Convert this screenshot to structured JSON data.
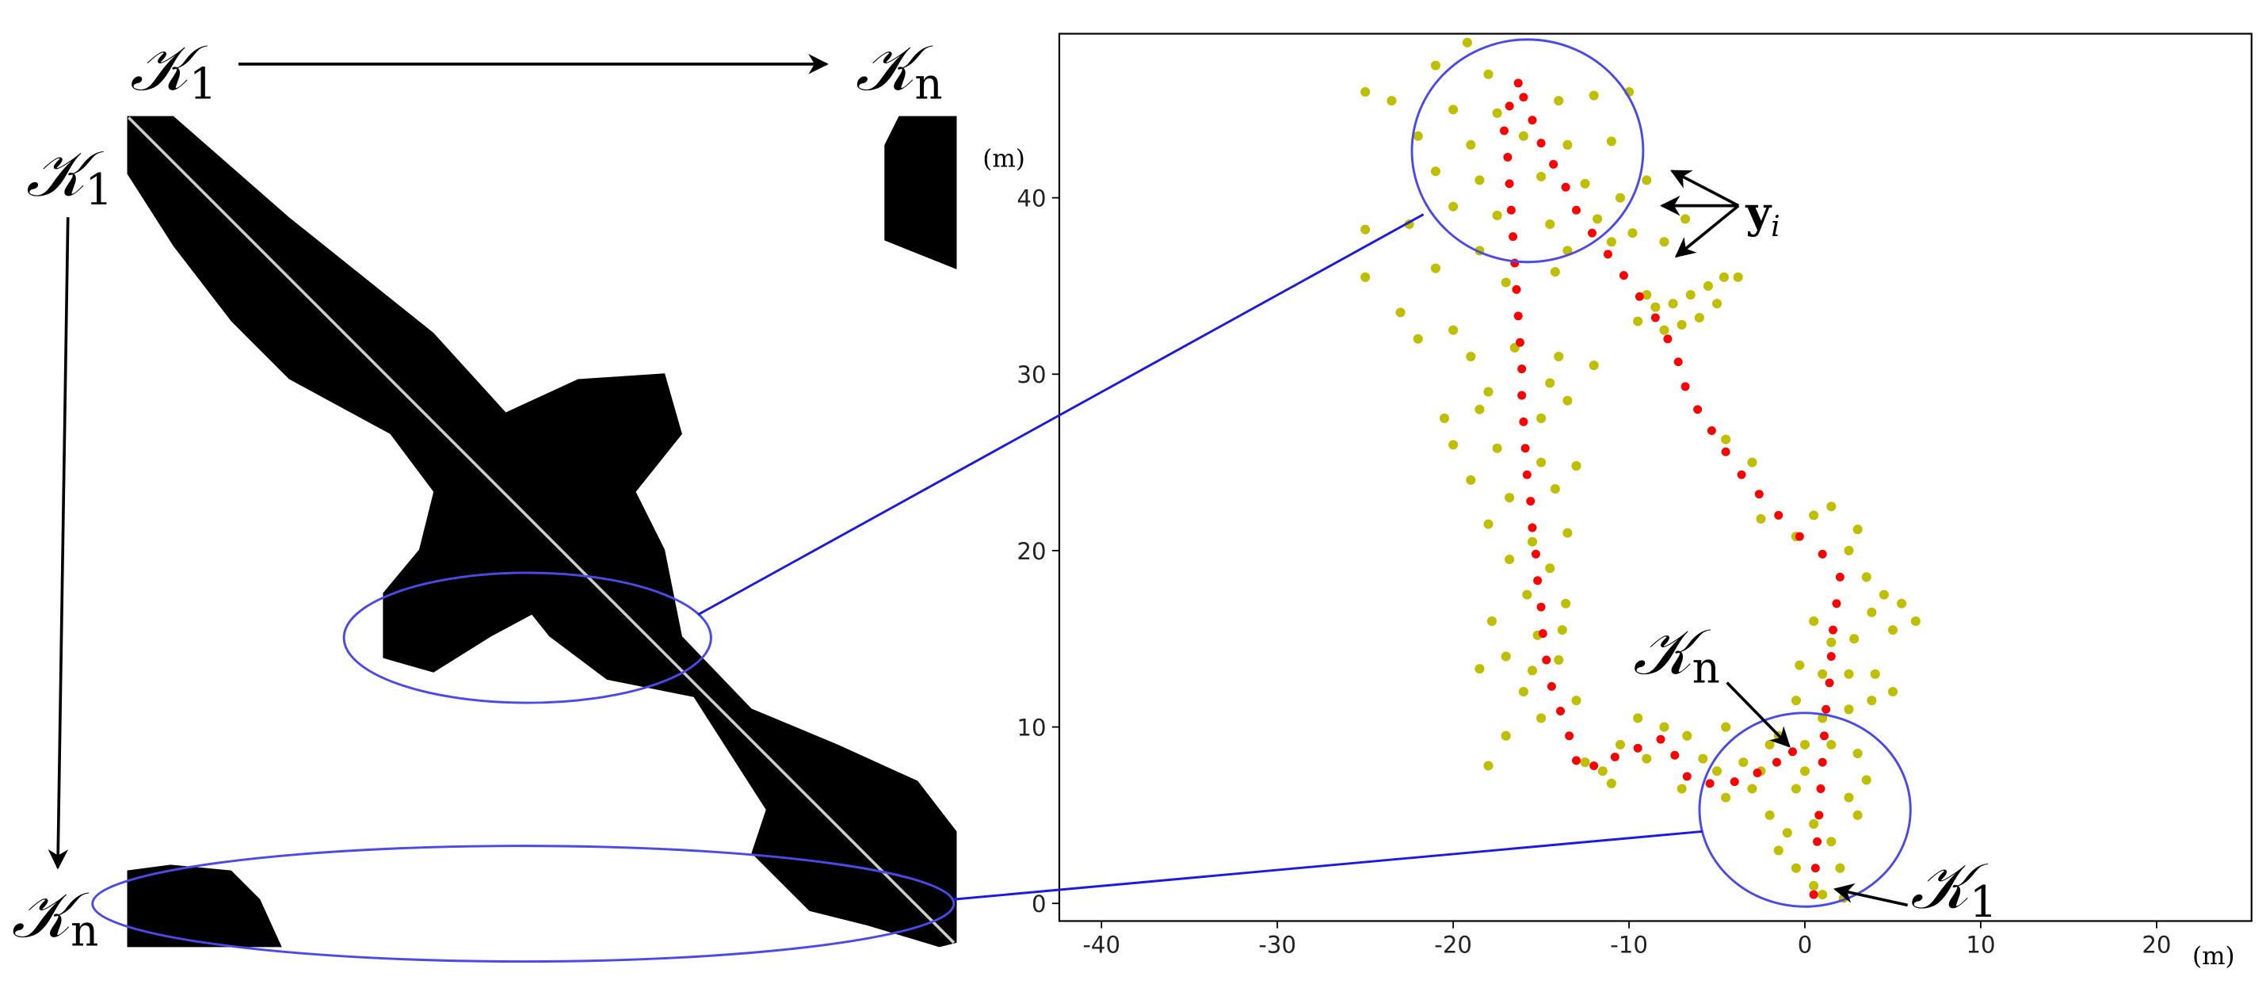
{
  "similarity_matrix": {
    "top_labels": [
      {
        "symbol": "𝒦",
        "subscript": "1"
      },
      {
        "symbol": "𝒦",
        "subscript": "n"
      }
    ],
    "left_labels": [
      {
        "symbol": "𝒦",
        "subscript": "1"
      },
      {
        "symbol": "𝒦",
        "subscript": "n"
      }
    ]
  },
  "chart_data": {
    "type": "scatter",
    "x_label": "(m)",
    "y_label": "(m)",
    "xlim": [
      -42.4,
      25.4
    ],
    "ylim": [
      -1,
      49.3
    ],
    "xticks": [
      -40,
      -30,
      -20,
      -10,
      0,
      10,
      20
    ],
    "yticks": [
      0,
      10,
      20,
      30,
      40
    ],
    "annotations": [
      {
        "symbol": "y",
        "subscript": "i"
      },
      {
        "symbol": "𝒦",
        "subscript": "n"
      },
      {
        "symbol": "𝒦",
        "subscript": "1"
      }
    ],
    "series": [
      {
        "color": "#bfbf00",
        "x": [
          -19.2,
          -21,
          -18,
          -25,
          -23.5,
          -20,
          -17.5,
          -14,
          -12,
          -10,
          -22,
          -19,
          -16,
          -13.5,
          -11,
          -21,
          -18.5,
          -15,
          -12.5,
          -10.5,
          -9,
          -20,
          -17.5,
          -14.5,
          -11.8,
          -9.8,
          -25,
          -22.5,
          -18.5,
          -13.5,
          -11,
          -8,
          -6.8,
          -25,
          -21,
          -17,
          -14.2,
          -23,
          -20,
          -22,
          -9.5,
          -8.5,
          -7.5,
          -6.5,
          -5.5,
          -4.6,
          -5,
          -7,
          -8,
          -9,
          -3.8,
          -6,
          -19,
          -16.5,
          -14,
          -12,
          -18,
          -14.5,
          -20.5,
          -18.5,
          -15,
          -13.5,
          -20,
          -17.5,
          -15,
          -13,
          -19,
          -16.8,
          -14.2,
          -18,
          -15.5,
          -13.5,
          -16.8,
          -14.5,
          -15.8,
          -13.6,
          -17.8,
          -15.2,
          -13.8,
          -17,
          -15.5,
          -14,
          -18.5,
          -16,
          -13,
          -15,
          -18,
          -17,
          -12.5,
          -11.5,
          -10.5,
          -9.5,
          -9,
          -8,
          -6.7,
          -5.8,
          -5,
          -7,
          -3.5,
          -2,
          -4.5,
          -3,
          -11,
          -4.5,
          -3,
          -2.5,
          0.5,
          1.5,
          3,
          -0.5,
          2.5,
          3.5,
          4.5,
          5.5,
          6.3,
          5,
          3.8,
          2.8,
          1.5,
          0.5,
          -0.3,
          1,
          2.5,
          4,
          3.8,
          5,
          2.5,
          1,
          -0.5,
          -1.5,
          0,
          1.5,
          3,
          3.5,
          2.5,
          -0.5,
          -2,
          -1,
          0.5,
          1.5,
          2,
          -0.5,
          0.5,
          -1.5,
          3,
          -2.5,
          0,
          -4.5,
          1,
          2.2
        ],
        "values": [
          48.8,
          47.5,
          47,
          46,
          45.5,
          45,
          44.8,
          45.5,
          45.8,
          46,
          43.5,
          43,
          43.5,
          43,
          43.2,
          41.5,
          41,
          41.2,
          40.8,
          40,
          41,
          39.5,
          39,
          38.5,
          38.8,
          38,
          38.2,
          38.5,
          37,
          37,
          37.5,
          37.5,
          38.8,
          35.5,
          36,
          35.2,
          35.8,
          33.5,
          32.5,
          32,
          33,
          33.8,
          34,
          34.5,
          35,
          35.5,
          34,
          32.8,
          32.5,
          34.5,
          35.5,
          33.2,
          31,
          31.5,
          31,
          30.5,
          29,
          29.5,
          27.5,
          28,
          27.5,
          28.5,
          26,
          25.8,
          25,
          24.8,
          24,
          23,
          23.5,
          21.5,
          20.5,
          21,
          19.5,
          19,
          17.5,
          17,
          16,
          15.2,
          15.5,
          14,
          13.2,
          13.8,
          13.3,
          12,
          11.5,
          10.5,
          7.8,
          9.5,
          8,
          7.5,
          9,
          10.5,
          8.2,
          10,
          9.5,
          8.2,
          7.5,
          6.5,
          8,
          9,
          10,
          6.5,
          6.8,
          26.3,
          25,
          21.8,
          22,
          22.5,
          21.2,
          20.8,
          20,
          18.5,
          17.5,
          17,
          16,
          15.5,
          16.5,
          15,
          14.8,
          16,
          13.5,
          13,
          13,
          13,
          11.5,
          12,
          11,
          10.5,
          11.5,
          9.5,
          9,
          9,
          8.5,
          7,
          6,
          6.5,
          5,
          4,
          4.5,
          3.5,
          2,
          2,
          1,
          3,
          5,
          7.5,
          7.5,
          6,
          0.5,
          0.3
        ]
      },
      {
        "color": "#ff0000",
        "x": [
          0.5,
          0.6,
          0.7,
          0.8,
          0.9,
          1,
          1.1,
          1.2,
          1.4,
          1.5,
          1.6,
          1.8,
          2,
          1,
          -0.3,
          -1.5,
          -2.6,
          -3.6,
          -4.5,
          -5.3,
          -6.1,
          -6.8,
          -7.2,
          -7.8,
          -8.5,
          -9.4,
          -10.3,
          -11.2,
          -12.1,
          -13,
          -13.6,
          -14.3,
          -15,
          -15.5,
          -16,
          -16.3,
          -16.8,
          -17.1,
          -16.9,
          -16.8,
          -16.7,
          -16.6,
          -16.5,
          -16.4,
          -16.3,
          -16.2,
          -16.1,
          -16.1,
          -16,
          -15.9,
          -15.8,
          -15.6,
          -15.5,
          -15.3,
          -15.2,
          -15,
          -14.9,
          -14.7,
          -14.4,
          -13.9,
          -13.4,
          -13,
          -12,
          -10.8,
          -9.5,
          -8.2,
          -7.4,
          -6.7,
          -5.4,
          -4,
          -2.7,
          -1.6,
          -0.7
        ],
        "values": [
          0.5,
          2,
          3.5,
          5,
          6.5,
          8,
          9.5,
          11,
          12.5,
          14,
          15.5,
          17,
          18.5,
          19.8,
          20.8,
          22,
          23.2,
          24.3,
          25.6,
          26.8,
          28,
          29.3,
          30.7,
          32,
          33.2,
          34.4,
          35.6,
          36.8,
          38,
          39.3,
          40.6,
          41.9,
          43.1,
          44.4,
          45.7,
          46.5,
          45.2,
          43.8,
          42.3,
          40.8,
          39.3,
          37.8,
          36.3,
          34.8,
          33.3,
          31.8,
          30.3,
          28.8,
          27.3,
          25.8,
          24.3,
          22.8,
          21.3,
          19.8,
          18.3,
          16.8,
          15.3,
          13.8,
          12.3,
          10.9,
          9.5,
          8.1,
          7.8,
          8.3,
          8.8,
          9.3,
          8.4,
          7.2,
          6.8,
          6.9,
          7.4,
          8,
          8.6
        ]
      }
    ]
  }
}
